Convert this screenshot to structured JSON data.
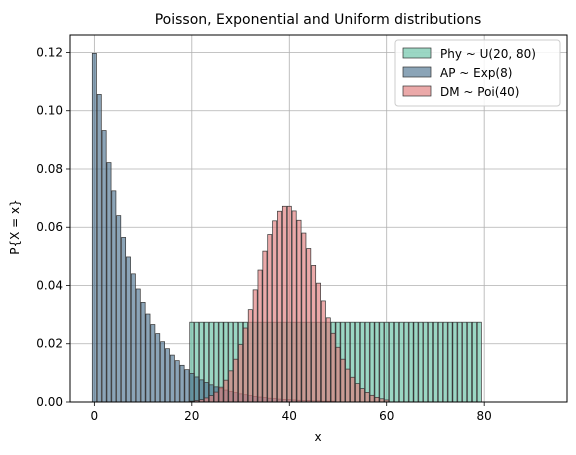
{
  "chart_data": {
    "type": "bar",
    "title": "Poisson, Exponential and Uniform distributions",
    "xlabel": "x",
    "ylabel": "P{X = x}",
    "xlim": [
      -5,
      97
    ],
    "ylim": [
      0,
      0.126
    ],
    "xticks": [
      0,
      20,
      40,
      60,
      80
    ],
    "yticks": [
      0.0,
      0.02,
      0.04,
      0.06,
      0.08,
      0.1,
      0.12
    ],
    "ytick_labels": [
      "0.00",
      "0.02",
      "0.04",
      "0.06",
      "0.08",
      "0.10",
      "0.12"
    ],
    "grid": true,
    "legend_position": "top-right",
    "series": [
      {
        "name": "Phy ~ U(20, 80)",
        "color": "#66c2a5",
        "x_start": 20,
        "values": [
          0.0274,
          0.0274,
          0.0274,
          0.0274,
          0.0274,
          0.0274,
          0.0274,
          0.0274,
          0.0274,
          0.0274,
          0.0274,
          0.0274,
          0.0274,
          0.0274,
          0.0274,
          0.0274,
          0.0274,
          0.0274,
          0.0274,
          0.0274,
          0.0274,
          0.0274,
          0.0274,
          0.0274,
          0.0274,
          0.0274,
          0.0274,
          0.0274,
          0.0274,
          0.0274,
          0.0274,
          0.0274,
          0.0274,
          0.0274,
          0.0274,
          0.0274,
          0.0274,
          0.0274,
          0.0274,
          0.0274,
          0.0274,
          0.0274,
          0.0274,
          0.0274,
          0.0274,
          0.0274,
          0.0274,
          0.0274,
          0.0274,
          0.0274,
          0.0274,
          0.0274,
          0.0274,
          0.0274,
          0.0274,
          0.0274,
          0.0274,
          0.0274,
          0.0274,
          0.0274
        ]
      },
      {
        "name": "AP ~ Exp(8)",
        "color": "#4d7391",
        "x_start": 0,
        "values": [
          0.1197,
          0.1056,
          0.0932,
          0.0822,
          0.0725,
          0.064,
          0.0565,
          0.0498,
          0.044,
          0.0388,
          0.0342,
          0.0302,
          0.0266,
          0.0235,
          0.0207,
          0.0183,
          0.0161,
          0.0142,
          0.0126,
          0.0111,
          0.0098,
          0.0086,
          0.0076,
          0.0067,
          0.0059,
          0.0052,
          0.0046,
          0.0041,
          0.0036,
          0.0032,
          0.0028,
          0.0025,
          0.0022,
          0.0019,
          0.0017,
          0.0015,
          0.0013,
          0.0012,
          0.001,
          0.0009,
          0.0008,
          0.0007,
          0.0006,
          0.0005,
          0.0005,
          0.0004,
          0.0004,
          0.0003,
          0.0003,
          0.0003
        ]
      },
      {
        "name": "DM ~ Poi(40)",
        "color": "#e07b7b",
        "x_start": 20,
        "values": [
          0.0003,
          0.0005,
          0.0008,
          0.0014,
          0.0022,
          0.0034,
          0.0051,
          0.0075,
          0.0107,
          0.0147,
          0.0197,
          0.0254,
          0.0317,
          0.0385,
          0.0453,
          0.0518,
          0.0575,
          0.0622,
          0.0655,
          0.0672,
          0.0672,
          0.0656,
          0.0624,
          0.058,
          0.0527,
          0.0469,
          0.0408,
          0.0347,
          0.0289,
          0.0236,
          0.0188,
          0.0147,
          0.0113,
          0.0085,
          0.0063,
          0.0046,
          0.0033,
          0.0023,
          0.0016,
          0.0011,
          0.0007
        ]
      }
    ]
  }
}
